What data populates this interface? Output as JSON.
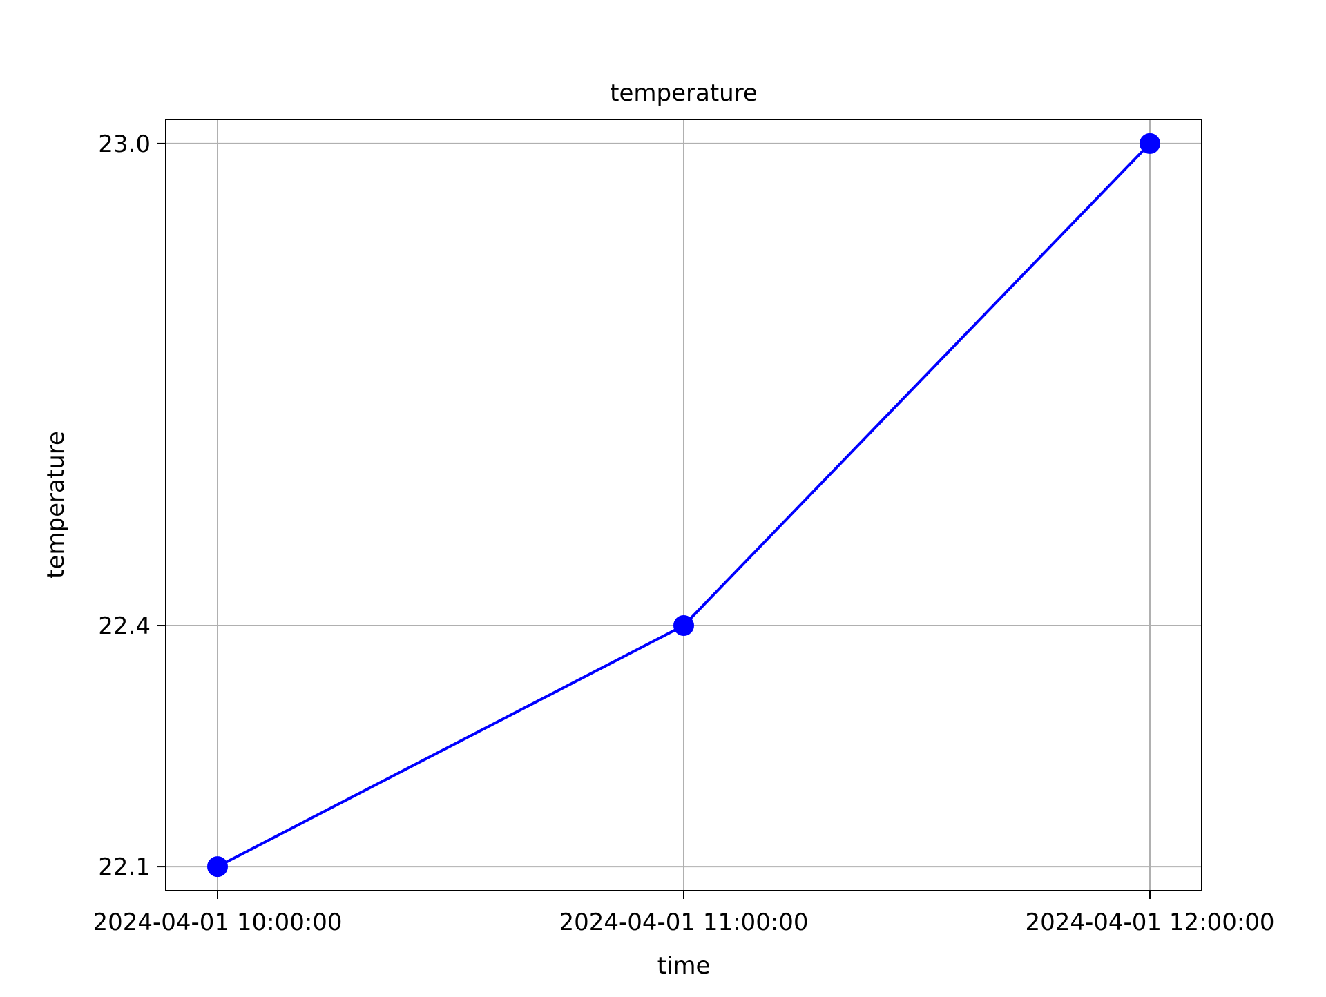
{
  "chart_data": {
    "type": "line",
    "title": "temperature",
    "xlabel": "time",
    "ylabel": "temperature",
    "x": [
      "2024-04-01 10:00:00",
      "2024-04-01 11:00:00",
      "2024-04-01 12:00:00"
    ],
    "series": [
      {
        "values": [
          22.1,
          22.4,
          23.0
        ],
        "color": "#0000ff",
        "marker": "circle"
      }
    ],
    "yticks": [
      22.1,
      22.4,
      23.0
    ],
    "ytick_labels": [
      "22.1",
      "22.4",
      "23.0"
    ],
    "ylim": [
      22.07,
      23.03
    ],
    "grid": true,
    "grid_color": "#b0b0b0",
    "legend": false
  }
}
